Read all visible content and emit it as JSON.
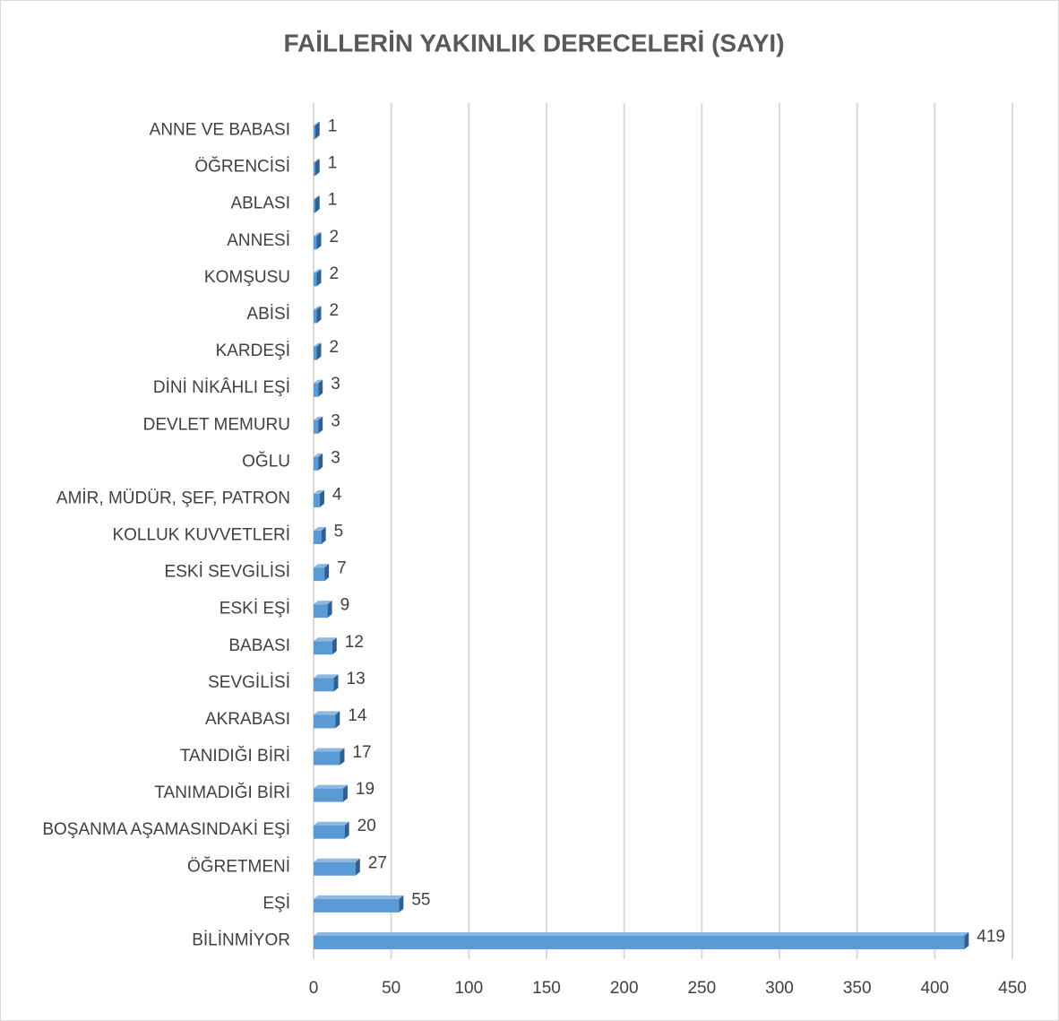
{
  "chart_data": {
    "type": "bar",
    "orientation": "horizontal",
    "title": "FAİLLERİN YAKINLIK DERECELERİ (SAYI)",
    "categories": [
      "BİLİNMİYOR",
      "EŞİ",
      "ÖĞRETMENİ",
      "BOŞANMA AŞAMASINDAKİ EŞİ",
      "TANIMADIĞI BİRİ",
      "TANIDIĞI BİRİ",
      "AKRABASI",
      "SEVGİLİSİ",
      "BABASI",
      "ESKİ EŞİ",
      "ESKİ SEVGİLİSİ",
      "KOLLUK KUVVETLERİ",
      "AMİR, MÜDÜR, ŞEF, PATRON",
      "OĞLU",
      "DEVLET MEMURU",
      "DİNİ NİKÂHLI EŞİ",
      "KARDEŞİ",
      "ABİSİ",
      "KOMŞUSU",
      "ANNESİ",
      "ABLASI",
      "ÖĞRENCİSİ",
      "ANNE VE BABASI"
    ],
    "values": [
      419,
      55,
      27,
      20,
      19,
      17,
      14,
      13,
      12,
      9,
      7,
      5,
      4,
      3,
      3,
      3,
      2,
      2,
      2,
      2,
      1,
      1,
      1
    ],
    "color": "#5b9bd5",
    "xlim": [
      0,
      450
    ],
    "xticks": [
      0,
      50,
      100,
      150,
      200,
      250,
      300,
      350,
      400,
      450
    ],
    "grid": true
  }
}
